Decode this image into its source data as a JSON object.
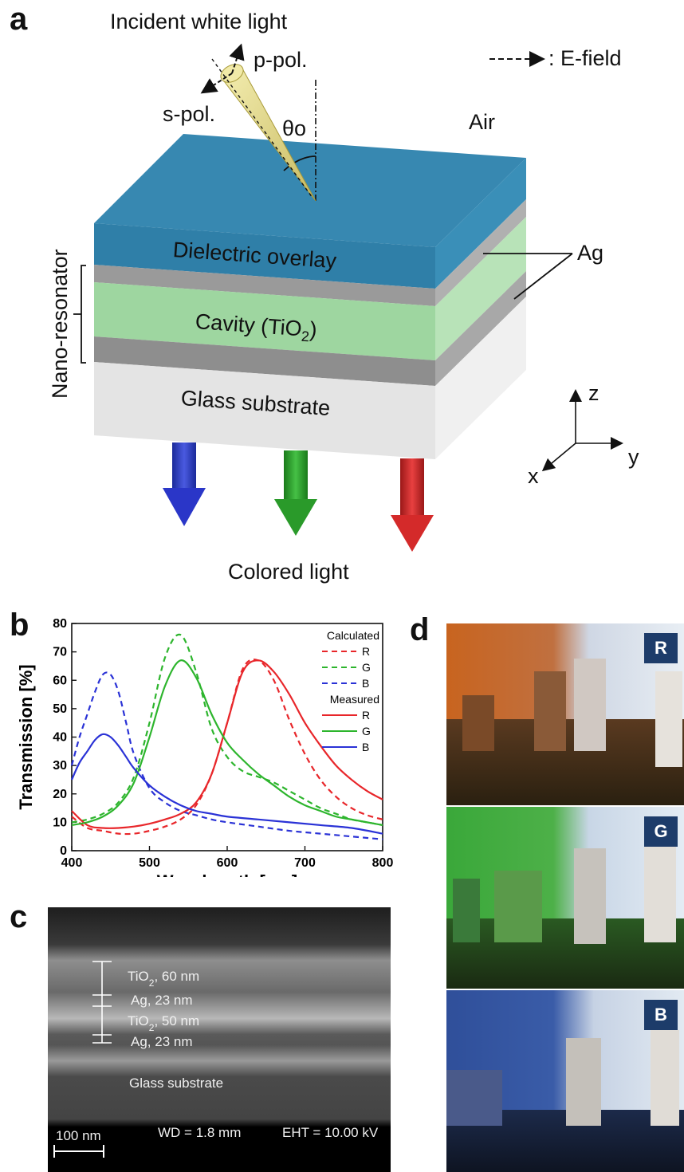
{
  "panels": {
    "a": "a",
    "b": "b",
    "c": "c",
    "d": "d"
  },
  "panel_a": {
    "incident_light": "Incident white light",
    "e_field_legend": ": E-field",
    "p_pol": "p-pol.",
    "s_pol": "s-pol.",
    "theta": "θo",
    "air": "Air",
    "dielectric": "Dielectric overlay",
    "cavity": "Cavity (TiO",
    "cavity_sub": "2",
    "cavity_end": ")",
    "glass": "Glass substrate",
    "ag": "Ag",
    "nano_resonator": "Nano-resonator",
    "colored_light": "Colored light",
    "axes": {
      "z": "z",
      "y": "y",
      "x": "x"
    },
    "colors": {
      "dielectric": "#2f7fa8",
      "cavity": "#9ed6a0",
      "ag": "#9a9a9a",
      "glass": "#e6e6e6"
    }
  },
  "chart_data": {
    "type": "line",
    "xlabel": "Wavelength [nm]",
    "ylabel": "Transmission [%]",
    "xlim": [
      400,
      800
    ],
    "ylim": [
      0,
      80
    ],
    "xticks": [
      400,
      500,
      600,
      700,
      800
    ],
    "yticks": [
      0,
      10,
      20,
      30,
      40,
      50,
      60,
      70,
      80
    ],
    "legend_header_calc": "Calculated",
    "legend_header_meas": "Measured",
    "legend_placement": "top-right",
    "series": [
      {
        "name": "R",
        "group": "Calculated",
        "style": "dashed",
        "color": "#e8262a",
        "x": [
          400,
          420,
          440,
          460,
          480,
          500,
          520,
          540,
          560,
          580,
          600,
          620,
          640,
          660,
          680,
          700,
          720,
          740,
          760,
          780,
          800
        ],
        "y": [
          12,
          8,
          7,
          6,
          6,
          7,
          8.5,
          11,
          16,
          27,
          45,
          64,
          67,
          60,
          46,
          34,
          25,
          19,
          15,
          12.5,
          11
        ]
      },
      {
        "name": "G",
        "group": "Calculated",
        "style": "dashed",
        "color": "#2db52d",
        "x": [
          400,
          420,
          440,
          460,
          480,
          500,
          520,
          540,
          560,
          580,
          600,
          620,
          640,
          660,
          680,
          700,
          720,
          740,
          760,
          780,
          800
        ],
        "y": [
          10,
          11,
          13,
          17,
          26,
          45,
          68,
          76,
          63,
          43,
          33,
          28,
          26,
          24,
          21,
          18,
          15,
          13,
          11,
          10,
          9
        ]
      },
      {
        "name": "B",
        "group": "Calculated",
        "style": "dashed",
        "color": "#2a32d6",
        "x": [
          400,
          410,
          420,
          430,
          440,
          450,
          460,
          470,
          480,
          500,
          520,
          540,
          560,
          580,
          600,
          640,
          680,
          720,
          760,
          800
        ],
        "y": [
          30,
          40,
          48,
          56,
          62,
          62,
          56,
          45,
          34,
          22,
          17,
          14,
          12.5,
          11,
          10,
          8.5,
          7,
          6,
          5,
          4
        ]
      },
      {
        "name": "R",
        "group": "Measured",
        "style": "solid",
        "color": "#e8262a",
        "x": [
          400,
          420,
          440,
          460,
          480,
          500,
          520,
          540,
          560,
          580,
          600,
          620,
          640,
          660,
          680,
          700,
          720,
          740,
          760,
          780,
          800
        ],
        "y": [
          14,
          9,
          8,
          8,
          8.5,
          9.5,
          11,
          13,
          17,
          27,
          45,
          63,
          67,
          63,
          55,
          45,
          37,
          30,
          25,
          21,
          18
        ]
      },
      {
        "name": "G",
        "group": "Measured",
        "style": "solid",
        "color": "#2db52d",
        "x": [
          400,
          420,
          440,
          460,
          480,
          500,
          520,
          540,
          560,
          580,
          600,
          620,
          640,
          660,
          680,
          700,
          720,
          740,
          760,
          780,
          800
        ],
        "y": [
          9,
          10,
          12,
          16,
          24,
          40,
          58,
          67,
          61,
          48,
          38,
          32,
          27,
          23,
          19,
          16,
          14,
          12,
          11,
          10,
          9
        ]
      },
      {
        "name": "B",
        "group": "Measured",
        "style": "solid",
        "color": "#2a32d6",
        "x": [
          400,
          410,
          420,
          430,
          440,
          450,
          460,
          470,
          480,
          500,
          520,
          540,
          560,
          580,
          600,
          640,
          680,
          720,
          760,
          800
        ],
        "y": [
          25,
          31,
          35,
          39,
          41,
          40,
          37,
          33,
          29,
          23,
          19,
          16,
          14,
          13,
          12,
          11,
          10,
          9,
          8,
          6
        ]
      }
    ]
  },
  "panel_c": {
    "layers": [
      {
        "material": "TiO",
        "sub": "2",
        "rest": ", 60 nm"
      },
      {
        "material": "Ag",
        "sub": "",
        "rest": ", 23 nm"
      },
      {
        "material": "TiO",
        "sub": "2",
        "rest": ", 50 nm"
      },
      {
        "material": "Ag",
        "sub": "",
        "rest": ", 23 nm"
      }
    ],
    "glass": "Glass substrate",
    "scalebar": "100 nm",
    "wd": "WD =  1.8 mm",
    "eht": "EHT = 10.00 kV"
  },
  "panel_d": {
    "photos": [
      {
        "badge": "R",
        "tint": "#c8641f"
      },
      {
        "badge": "G",
        "tint": "#3aa83a"
      },
      {
        "badge": "B",
        "tint": "#2f4f9a"
      }
    ]
  }
}
